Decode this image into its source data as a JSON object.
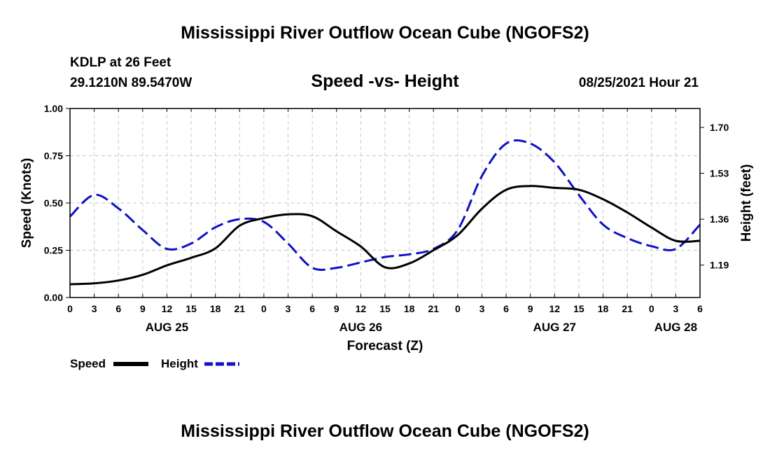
{
  "header": {
    "title": "Mississippi River Outflow Ocean Cube (NGOFS2)",
    "station": "KDLP at 26 Feet",
    "coords": "29.1210N  89.5470W",
    "subtitle": "Speed -vs- Height",
    "datetime": "08/25/2021 Hour 21"
  },
  "footer": {
    "title": "Mississippi River Outflow Ocean Cube (NGOFS2)"
  },
  "colors": {
    "speed": "#000000",
    "height": "#1010c8",
    "grid": "#c8c8c8"
  },
  "chart_data": {
    "type": "line",
    "title": "Speed -vs- Height",
    "xlabel": "Forecast (Z)",
    "ylabel": "Speed (Knots)",
    "y2label": "Height (feet)",
    "xlim": [
      0,
      78
    ],
    "ylim": [
      0,
      1.0
    ],
    "y2lim": [
      1.07,
      1.77
    ],
    "x_ticks": [
      0,
      3,
      6,
      9,
      12,
      15,
      18,
      21,
      24,
      27,
      30,
      33,
      36,
      39,
      42,
      45,
      48,
      51,
      54,
      57,
      60,
      63,
      66,
      69,
      72,
      75,
      78
    ],
    "x_tick_labels": [
      "0",
      "3",
      "6",
      "9",
      "12",
      "15",
      "18",
      "21",
      "0",
      "3",
      "6",
      "9",
      "12",
      "15",
      "18",
      "21",
      "0",
      "3",
      "6",
      "9",
      "12",
      "15",
      "18",
      "21",
      "0",
      "3",
      "6"
    ],
    "day_labels": [
      {
        "x": 12,
        "label": "AUG 25"
      },
      {
        "x": 36,
        "label": "AUG 26"
      },
      {
        "x": 60,
        "label": "AUG 27"
      },
      {
        "x": 75,
        "label": "AUG 28"
      }
    ],
    "y_ticks": [
      0,
      0.25,
      0.5,
      0.75,
      1.0
    ],
    "y_tick_labels": [
      "0.00",
      "0.25",
      "0.50",
      "0.75",
      "1.00"
    ],
    "y2_ticks": [
      1.19,
      1.36,
      1.53,
      1.7
    ],
    "y2_tick_labels": [
      "1.19",
      "1.36",
      "1.53",
      "1.70"
    ],
    "grid": true,
    "legend": {
      "position": "bottom-left",
      "entries": [
        "Speed",
        "Height"
      ]
    },
    "series": [
      {
        "name": "Speed",
        "axis": "left",
        "style": "solid",
        "x": [
          0,
          3,
          6,
          9,
          12,
          15,
          18,
          21,
          24,
          27,
          30,
          33,
          36,
          39,
          42,
          45,
          48,
          51,
          54,
          57,
          60,
          63,
          66,
          69,
          72,
          75,
          78
        ],
        "values": [
          0.07,
          0.075,
          0.09,
          0.12,
          0.17,
          0.21,
          0.26,
          0.38,
          0.42,
          0.44,
          0.43,
          0.35,
          0.27,
          0.16,
          0.18,
          0.25,
          0.33,
          0.47,
          0.57,
          0.59,
          0.58,
          0.57,
          0.52,
          0.45,
          0.37,
          0.3,
          0.3
        ]
      },
      {
        "name": "Height",
        "axis": "right",
        "style": "dashed",
        "x": [
          0,
          3,
          6,
          9,
          12,
          15,
          18,
          21,
          24,
          27,
          30,
          33,
          36,
          39,
          42,
          45,
          48,
          51,
          54,
          57,
          60,
          63,
          66,
          69,
          72,
          75,
          78
        ],
        "values": [
          1.37,
          1.45,
          1.4,
          1.32,
          1.25,
          1.27,
          1.33,
          1.36,
          1.35,
          1.27,
          1.18,
          1.18,
          1.2,
          1.22,
          1.23,
          1.25,
          1.32,
          1.52,
          1.64,
          1.64,
          1.57,
          1.45,
          1.34,
          1.29,
          1.26,
          1.25,
          1.34
        ]
      }
    ]
  }
}
